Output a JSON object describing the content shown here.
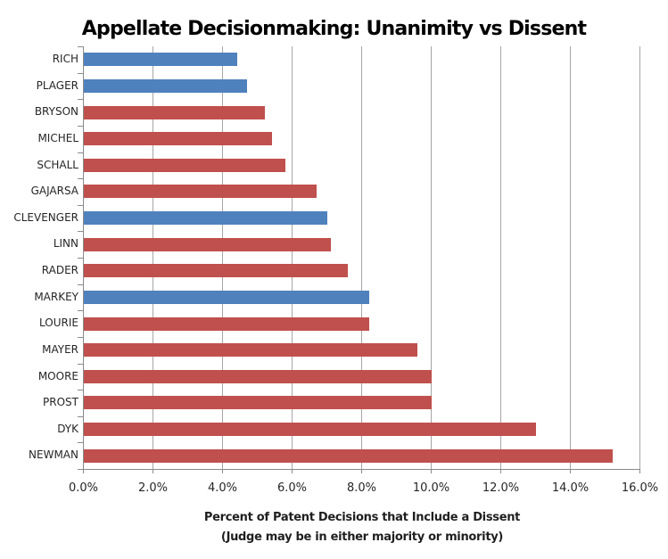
{
  "chart_data": {
    "type": "bar",
    "orientation": "horizontal",
    "title": "Appellate Decisionmaking: Unanimity vs Dissent",
    "xlabel_line1": "Percent of Patent Decisions that Include a Dissent",
    "xlabel_line2": "(Judge may be in either majority or minority)",
    "ylabel": "",
    "xlim": [
      0,
      16
    ],
    "x_tick_values": [
      0,
      2,
      4,
      6,
      8,
      10,
      12,
      14,
      16
    ],
    "x_tick_labels": [
      "0.0%",
      "2.0%",
      "4.0%",
      "6.0%",
      "8.0%",
      "10.0%",
      "12.0%",
      "14.0%",
      "16.0%"
    ],
    "grid": true,
    "legend": "none",
    "categories": [
      "RICH",
      "PLAGER",
      "BRYSON",
      "MICHEL",
      "SCHALL",
      "GAJARSA",
      "CLEVENGER",
      "LINN",
      "RADER",
      "MARKEY",
      "LOURIE",
      "MAYER",
      "MOORE",
      "PROST",
      "DYK",
      "NEWMAN"
    ],
    "values": [
      4.4,
      4.7,
      5.2,
      5.4,
      5.8,
      6.7,
      7.0,
      7.1,
      7.6,
      8.2,
      8.2,
      9.6,
      10.0,
      10.0,
      13.0,
      15.2
    ],
    "bar_color_names": [
      "blue",
      "blue",
      "red",
      "red",
      "red",
      "red",
      "blue",
      "red",
      "red",
      "blue",
      "red",
      "red",
      "red",
      "red",
      "red",
      "red"
    ],
    "colors": {
      "blue": "#4F81BD",
      "red": "#C0504D",
      "gridline": "#A6A6A6",
      "axis": "#8A8A8A",
      "label_text": "#262626",
      "title_text": "#000000",
      "background": "#FFFFFF"
    }
  }
}
